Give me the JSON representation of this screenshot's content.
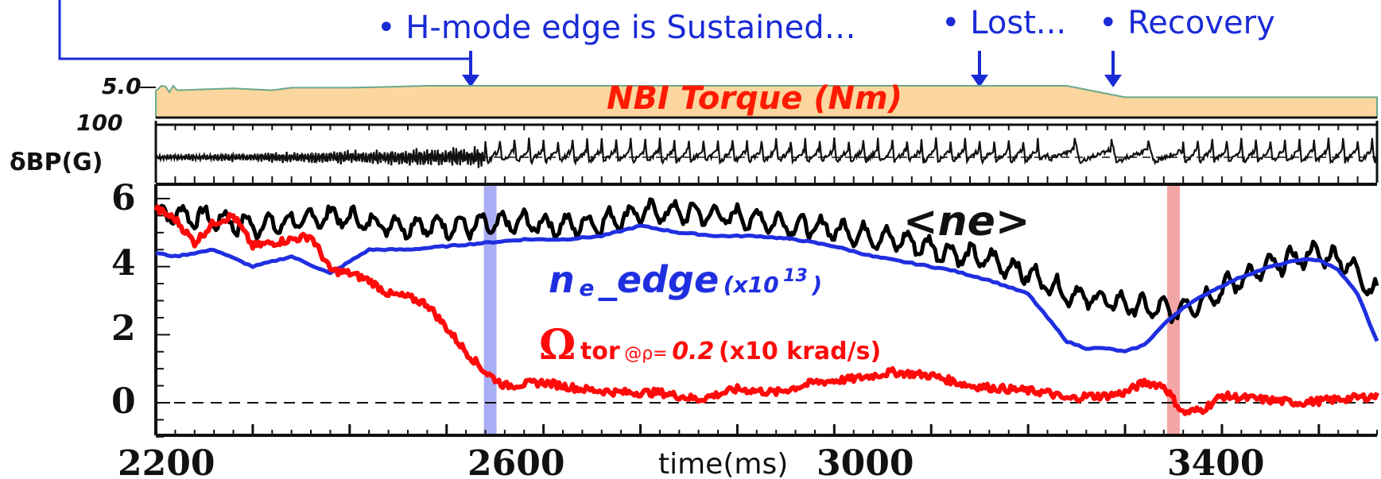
{
  "annotations": {
    "sustained": "• H-mode edge is Sustained…",
    "lost": "• Lost...",
    "recovery": "• Recovery"
  },
  "colors": {
    "annotation": "#1a2bd6",
    "torque_fill": "#fbd69e",
    "torque_edge": "#6aa88a",
    "torque_label": "#ff1a00",
    "ne": "#000000",
    "ne_edge": "#1f2fe0",
    "omega": "#ff0a0a",
    "mark_blue": "#9aa0f2",
    "mark_red": "#f29595"
  },
  "chart_data": [
    {
      "type": "area",
      "panel": "top",
      "series": [
        {
          "name": "NBI Torque (Nm)",
          "x": [
            2200,
            2206,
            2210,
            2214,
            2218,
            2222,
            2280,
            2320,
            2340,
            2360,
            2400,
            2430,
            2480,
            2520,
            2560,
            2600,
            2700,
            2800,
            2900,
            3000,
            3100,
            3140,
            3180,
            3200,
            3300,
            3400,
            3460
          ],
          "values": [
            4.2,
            5.0,
            4.9,
            4.0,
            5.0,
            4.3,
            4.6,
            4.3,
            4.7,
            4.7,
            4.7,
            4.8,
            5.0,
            5.0,
            5.0,
            5.0,
            5.0,
            5.0,
            5.0,
            5.0,
            5.0,
            5.0,
            3.8,
            3.2,
            3.2,
            3.2,
            3.2
          ]
        }
      ],
      "tick_labels": [
        "5.0"
      ],
      "ylim": [
        0,
        5.0
      ]
    },
    {
      "type": "line",
      "panel": "middle",
      "ylabel": "δBP(G)",
      "tick_labels": [
        "100"
      ],
      "series": [
        {
          "name": "δBP(G)",
          "x_range": [
            2200,
            3460
          ],
          "description_regions": [
            "small high-frequency fluctuations 2200–2540 ms",
            "periodic ELM-like spikes 2540–3460 ms"
          ]
        }
      ]
    },
    {
      "type": "line",
      "panel": "bottom",
      "xlabel": "time(ms)",
      "x_ticks": [
        "2200",
        "2600",
        "3000",
        "3400"
      ],
      "y_ticks": [
        "6",
        "4",
        "2",
        "0"
      ],
      "xlim": [
        2200,
        3460
      ],
      "ylim": [
        -1.0,
        6.4
      ],
      "markers": [
        {
          "x": 2545,
          "color": "blue"
        },
        {
          "x": 3250,
          "color": "red"
        }
      ],
      "series": [
        {
          "name": "<ne>",
          "x": [
            2200,
            2230,
            2260,
            2300,
            2340,
            2380,
            2420,
            2460,
            2500,
            2540,
            2580,
            2620,
            2660,
            2700,
            2740,
            2780,
            2820,
            2860,
            2900,
            2940,
            2980,
            3020,
            3060,
            3100,
            3140,
            3180,
            3220,
            3250,
            3280,
            3310,
            3340,
            3370,
            3400,
            3430,
            3460
          ],
          "values": [
            5.6,
            5.5,
            5.4,
            5.2,
            5.3,
            5.5,
            5.3,
            5.2,
            5.2,
            5.2,
            5.3,
            5.2,
            5.3,
            5.6,
            5.6,
            5.5,
            5.4,
            5.2,
            5.1,
            4.9,
            4.7,
            4.4,
            4.2,
            3.8,
            3.2,
            3.0,
            2.8,
            2.7,
            3.0,
            3.5,
            3.9,
            4.2,
            4.4,
            4.1,
            3.2
          ]
        },
        {
          "name": "ne_edge(x10^13)",
          "x": [
            2200,
            2220,
            2260,
            2300,
            2340,
            2380,
            2420,
            2460,
            2500,
            2540,
            2580,
            2620,
            2660,
            2700,
            2740,
            2780,
            2820,
            2860,
            2900,
            2940,
            2980,
            3020,
            3060,
            3100,
            3120,
            3140,
            3160,
            3180,
            3200,
            3220,
            3240,
            3260,
            3290,
            3320,
            3350,
            3380,
            3400,
            3420,
            3440,
            3460
          ],
          "values": [
            4.4,
            4.3,
            4.5,
            4.0,
            4.3,
            3.8,
            4.5,
            4.5,
            4.6,
            4.7,
            4.8,
            4.8,
            4.9,
            5.2,
            5.0,
            4.9,
            4.9,
            4.8,
            4.6,
            4.3,
            4.1,
            3.9,
            3.6,
            3.2,
            2.5,
            1.8,
            1.6,
            1.6,
            1.5,
            1.7,
            2.3,
            2.8,
            3.3,
            3.7,
            4.0,
            4.2,
            4.2,
            3.9,
            3.2,
            1.8
          ]
        },
        {
          "name": "Ωtor @ρ=0.2 (x10 krad/s)",
          "x": [
            2200,
            2220,
            2240,
            2260,
            2280,
            2300,
            2320,
            2340,
            2360,
            2380,
            2400,
            2420,
            2440,
            2460,
            2480,
            2500,
            2520,
            2540,
            2560,
            2600,
            2640,
            2680,
            2720,
            2760,
            2800,
            2840,
            2880,
            2920,
            2960,
            3000,
            3040,
            3080,
            3120,
            3140,
            3160,
            3180,
            3200,
            3220,
            3240,
            3260,
            3280,
            3300,
            3340,
            3380,
            3420,
            3460
          ],
          "values": [
            5.7,
            5.4,
            4.7,
            5.3,
            5.5,
            4.6,
            4.7,
            4.8,
            4.9,
            3.9,
            3.8,
            3.6,
            3.2,
            3.1,
            2.9,
            2.2,
            1.5,
            0.9,
            0.5,
            0.6,
            0.4,
            0.3,
            0.3,
            0.1,
            0.4,
            0.3,
            0.6,
            0.7,
            0.9,
            0.8,
            0.5,
            0.4,
            0.3,
            0.1,
            0.2,
            0.2,
            0.3,
            0.6,
            0.5,
            -0.3,
            -0.2,
            0.2,
            0.1,
            0.0,
            0.1,
            0.2
          ]
        }
      ]
    }
  ],
  "labels": {
    "torque": "NBI Torque (Nm)",
    "dbp": "δBP(G)",
    "ne": "<ne>",
    "ne_edge_n": "n",
    "ne_edge_sub": "e",
    "ne_edge_rest": "_edge",
    "ne_edge_scale": "(x10",
    "ne_edge_exp": "13",
    "ne_edge_close": ")",
    "omega_sym": "Ω",
    "omega_tor": "tor",
    "omega_at": "@ρ=",
    "omega_val": "0.2",
    "omega_unit": "(x10 krad/s)",
    "time": "time(ms)"
  }
}
